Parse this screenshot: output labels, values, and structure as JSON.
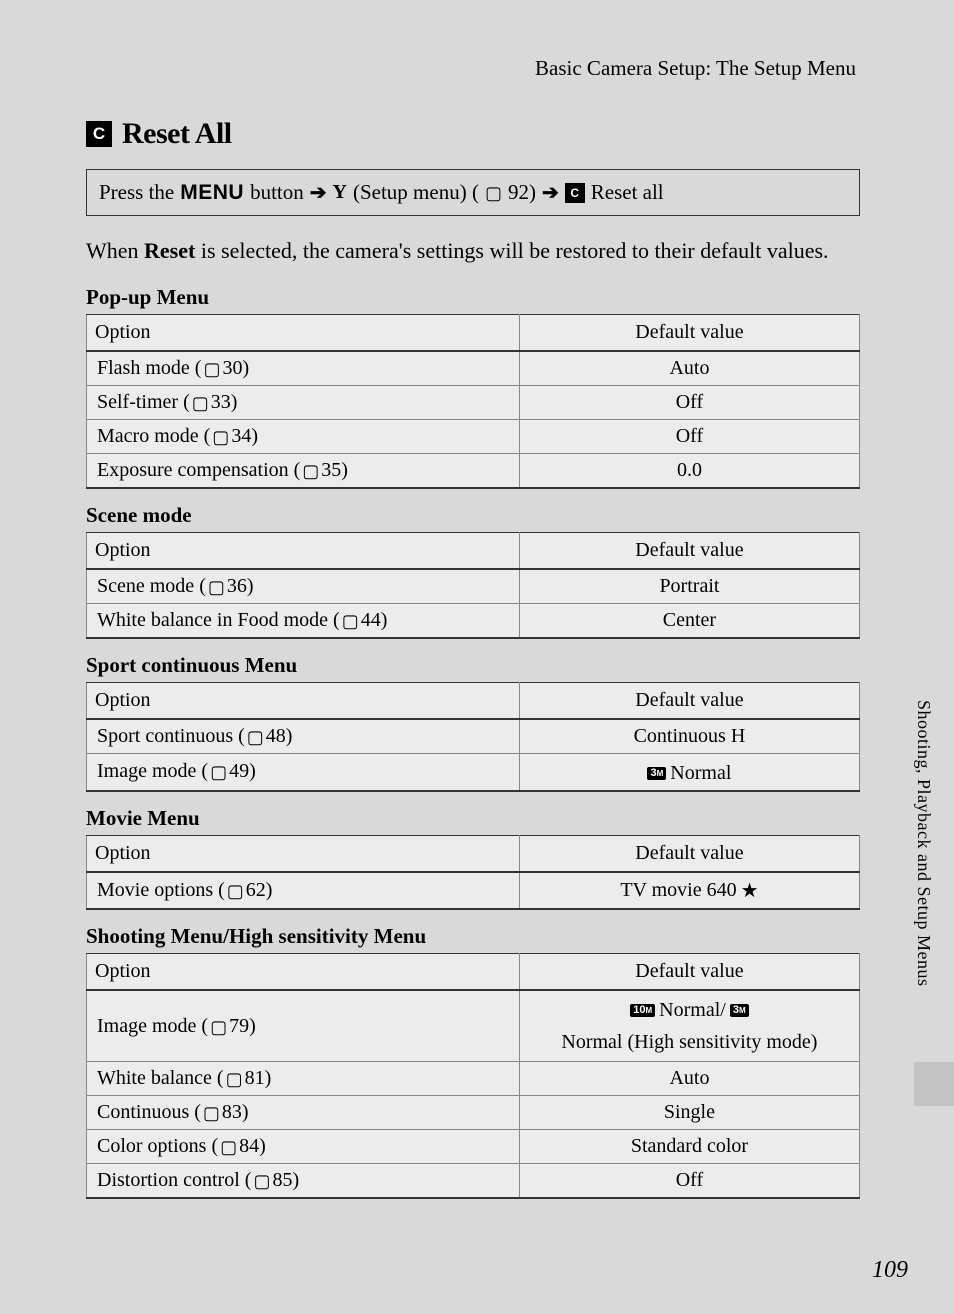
{
  "breadcrumb": "Basic Camera Setup: The Setup Menu",
  "title": "Reset All",
  "title_icon_letter": "C",
  "nav": {
    "prefix": "Press the",
    "menu_word": "MENU",
    "button_word": "button",
    "setup_label": "(Setup menu) (",
    "setup_page": "92)",
    "reset_label": "Reset all"
  },
  "intro_before": "When ",
  "intro_bold": "Reset",
  "intro_after": " is selected, the camera's settings will be restored to their default values.",
  "col_option": "Option",
  "col_default": "Default value",
  "sections": {
    "popup": {
      "heading": "Pop-up Menu",
      "rows": [
        {
          "option": "Flash mode (",
          "page": "30)",
          "value": "Auto"
        },
        {
          "option": "Self-timer (",
          "page": "33)",
          "value": "Off"
        },
        {
          "option": "Macro mode (",
          "page": "34)",
          "value": "Off"
        },
        {
          "option": "Exposure compensation (",
          "page": "35)",
          "value": "0.0"
        }
      ]
    },
    "scene": {
      "heading": "Scene mode",
      "rows": [
        {
          "option": "Scene mode (",
          "page": "36)",
          "value": "Portrait"
        },
        {
          "option": "White balance in Food mode (",
          "page": "44)",
          "value": "Center"
        }
      ]
    },
    "sport": {
      "heading": "Sport continuous Menu",
      "rows": [
        {
          "option": "Sport continuous (",
          "page": "48)",
          "value": "Continuous H"
        },
        {
          "option": "Image mode (",
          "page": "49)",
          "value_badge": "3",
          "value_badge_sub": "M",
          "value_after": " Normal"
        }
      ]
    },
    "movie": {
      "heading": "Movie Menu",
      "rows": [
        {
          "option": "Movie options (",
          "page": "62)",
          "value": "TV movie 640",
          "star": "★"
        }
      ]
    },
    "shooting": {
      "heading": "Shooting Menu/High sensitivity Menu",
      "rows": [
        {
          "option": "Image mode (",
          "page": "79)",
          "value_badge": "10",
          "value_badge_sub": "M",
          "value_mid": " Normal/",
          "value_badge2": "3",
          "value_badge2_sub": "M",
          "value_after": " Normal (High sensitivity mode)"
        },
        {
          "option": "White balance (",
          "page": "81)",
          "value": "Auto"
        },
        {
          "option": "Continuous (",
          "page": "83)",
          "value": "Single"
        },
        {
          "option": "Color options (",
          "page": "84)",
          "value": "Standard color"
        },
        {
          "option": "Distortion control (",
          "page": "85)",
          "value": "Off"
        }
      ]
    }
  },
  "side_text": "Shooting, Playback and Setup Menus",
  "page_number": "109"
}
